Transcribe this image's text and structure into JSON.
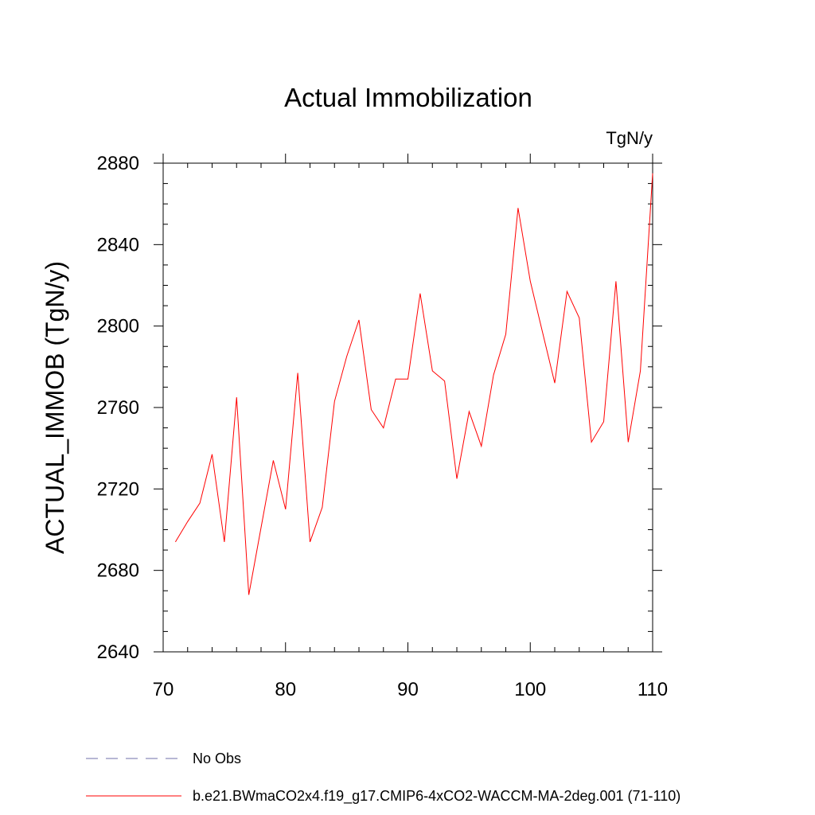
{
  "chart_data": {
    "type": "line",
    "title": "Actual Immobilization",
    "units": "TgN/y",
    "xlabel": "",
    "ylabel": "ACTUAL_IMMOB  (TgN/y)",
    "xlim": [
      70,
      110
    ],
    "ylim": [
      2640,
      2880
    ],
    "xticks": [
      70,
      80,
      90,
      100,
      110
    ],
    "yticks": [
      2640,
      2680,
      2720,
      2760,
      2800,
      2840,
      2880
    ],
    "x_minor_step": 2,
    "y_minor_step": 10,
    "series": [
      {
        "name": "b.e21.BWmaCO2x4.f19_g17.CMIP6-4xCO2-WACCM-MA-2deg.001 (71-110)",
        "color": "#ff0000",
        "style": "solid",
        "x": [
          71,
          72,
          73,
          74,
          75,
          76,
          77,
          78,
          79,
          80,
          81,
          82,
          83,
          84,
          85,
          86,
          87,
          88,
          89,
          90,
          91,
          92,
          93,
          94,
          95,
          96,
          97,
          98,
          99,
          100,
          101,
          102,
          103,
          104,
          105,
          106,
          107,
          108,
          109,
          110
        ],
        "values": [
          2694,
          2704,
          2713,
          2737,
          2694,
          2765,
          2668,
          2701,
          2734,
          2710,
          2777,
          2694,
          2711,
          2763,
          2785,
          2803,
          2759,
          2750,
          2774,
          2774,
          2816,
          2778,
          2773,
          2725,
          2758,
          2741,
          2776,
          2796,
          2858,
          2822,
          2797,
          2772,
          2817,
          2804,
          2743,
          2753,
          2822,
          2743,
          2778,
          2875
        ]
      }
    ],
    "legend": [
      {
        "label": "No Obs",
        "color": "#6f6fa8",
        "style": "dashed"
      },
      {
        "label": "b.e21.BWmaCO2x4.f19_g17.CMIP6-4xCO2-WACCM-MA-2deg.001 (71-110)",
        "color": "#ff0000",
        "style": "solid"
      }
    ]
  }
}
